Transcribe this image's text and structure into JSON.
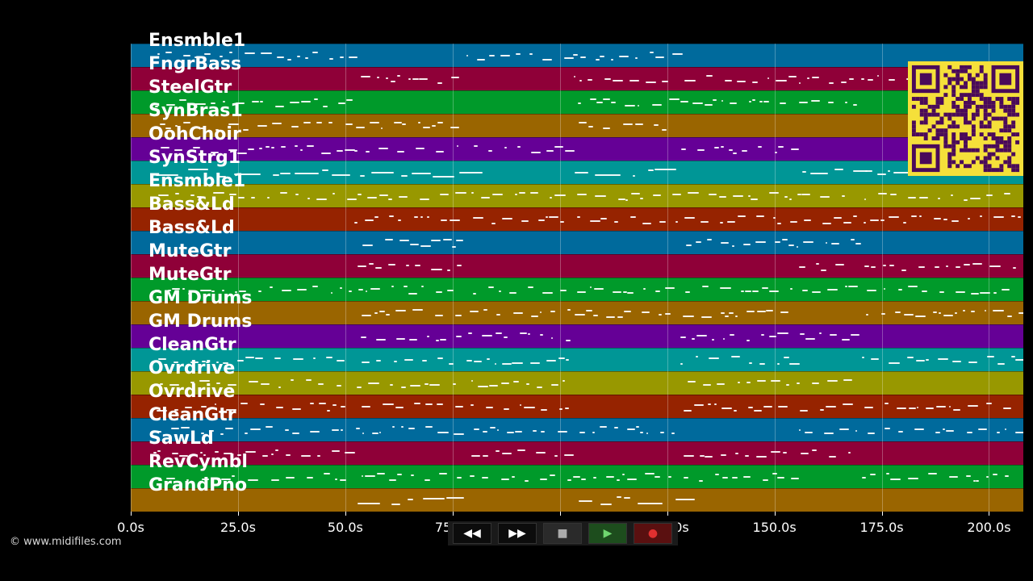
{
  "tracks": [
    {
      "name": "Ensmble1",
      "color": "#006a9c"
    },
    {
      "name": "FngrBass",
      "color": "#8f0038"
    },
    {
      "name": "SteelGtr",
      "color": "#009a2a"
    },
    {
      "name": "SynBras1",
      "color": "#9a6500"
    },
    {
      "name": "OohChoir",
      "color": "#650096"
    },
    {
      "name": "SynStrg1",
      "color": "#009696"
    },
    {
      "name": "Ensmble1",
      "color": "#989800"
    },
    {
      "name": "Bass&Ld",
      "color": "#962300"
    },
    {
      "name": "Bass&Ld",
      "color": "#006a9c"
    },
    {
      "name": "MuteGtr",
      "color": "#8f0038"
    },
    {
      "name": "MuteGtr",
      "color": "#009a2a"
    },
    {
      "name": "GM Drums",
      "color": "#9a6500"
    },
    {
      "name": "GM Drums",
      "color": "#650096"
    },
    {
      "name": "CleanGtr",
      "color": "#009696"
    },
    {
      "name": "Ovrdrive",
      "color": "#989800"
    },
    {
      "name": "Ovrdrive",
      "color": "#962300"
    },
    {
      "name": "CleanGtr",
      "color": "#006a9c"
    },
    {
      "name": "SawLd",
      "color": "#8f0038"
    },
    {
      "name": "RevCymbl",
      "color": "#009a2a"
    },
    {
      "name": "GrandPno",
      "color": "#9a6500"
    }
  ],
  "axis": {
    "min_seconds": 0,
    "max_seconds": 208,
    "ticks": [
      "0.0s",
      "25.0s",
      "50.0s",
      "75.0s",
      "100.0s",
      "125.0s",
      "150.0s",
      "175.0s",
      "200.0s"
    ],
    "tick_values": [
      0,
      25,
      50,
      75,
      100,
      125,
      150,
      175,
      200
    ]
  },
  "copyright": "© www.midifiles.com",
  "controls": {
    "rewind": "◀◀",
    "forward": "▶▶",
    "stop": "■",
    "play": "▶",
    "record": "●"
  },
  "qr_icon": "qr-code-icon",
  "colors": {
    "background": "#000000",
    "qr_yellow": "#f5e03a",
    "qr_purple": "#4a0a5a"
  }
}
